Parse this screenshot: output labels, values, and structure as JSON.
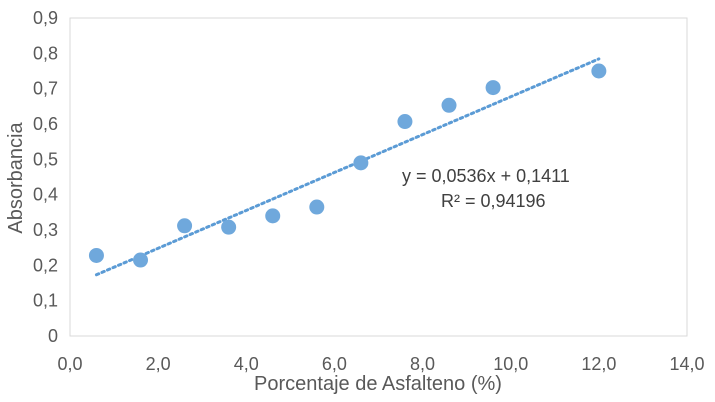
{
  "chart_data": {
    "type": "scatter",
    "title": "",
    "xlabel": "Porcentaje de Asfalteno (%)",
    "ylabel": "Absorbancia",
    "xlim": [
      0,
      14
    ],
    "ylim": [
      0,
      0.9
    ],
    "x_ticks": [
      "0,0",
      "2,0",
      "4,0",
      "6,0",
      "8,0",
      "10,0",
      "12,0",
      "14,0"
    ],
    "y_ticks": [
      "0",
      "0,1",
      "0,2",
      "0,3",
      "0,4",
      "0,5",
      "0,6",
      "0,7",
      "0,8",
      "0,9"
    ],
    "grid": false,
    "series": [
      {
        "points": [
          {
            "x": 0.6,
            "y": 0.228
          },
          {
            "x": 1.6,
            "y": 0.215
          },
          {
            "x": 2.6,
            "y": 0.312
          },
          {
            "x": 3.6,
            "y": 0.308
          },
          {
            "x": 4.6,
            "y": 0.34
          },
          {
            "x": 5.6,
            "y": 0.365
          },
          {
            "x": 6.6,
            "y": 0.49
          },
          {
            "x": 7.6,
            "y": 0.607
          },
          {
            "x": 8.6,
            "y": 0.653
          },
          {
            "x": 9.6,
            "y": 0.703
          },
          {
            "x": 12.0,
            "y": 0.75
          }
        ],
        "color": "#6fa8dc"
      }
    ],
    "trendline": {
      "type": "linear",
      "slope": 0.0536,
      "intercept": 0.1411,
      "x_range": [
        0.6,
        12.0
      ],
      "style": "dotted",
      "color": "#5b9bd5",
      "equation_label": "y = 0,0536x + 0,1411",
      "r2_label": "R² = 0,94196"
    }
  }
}
